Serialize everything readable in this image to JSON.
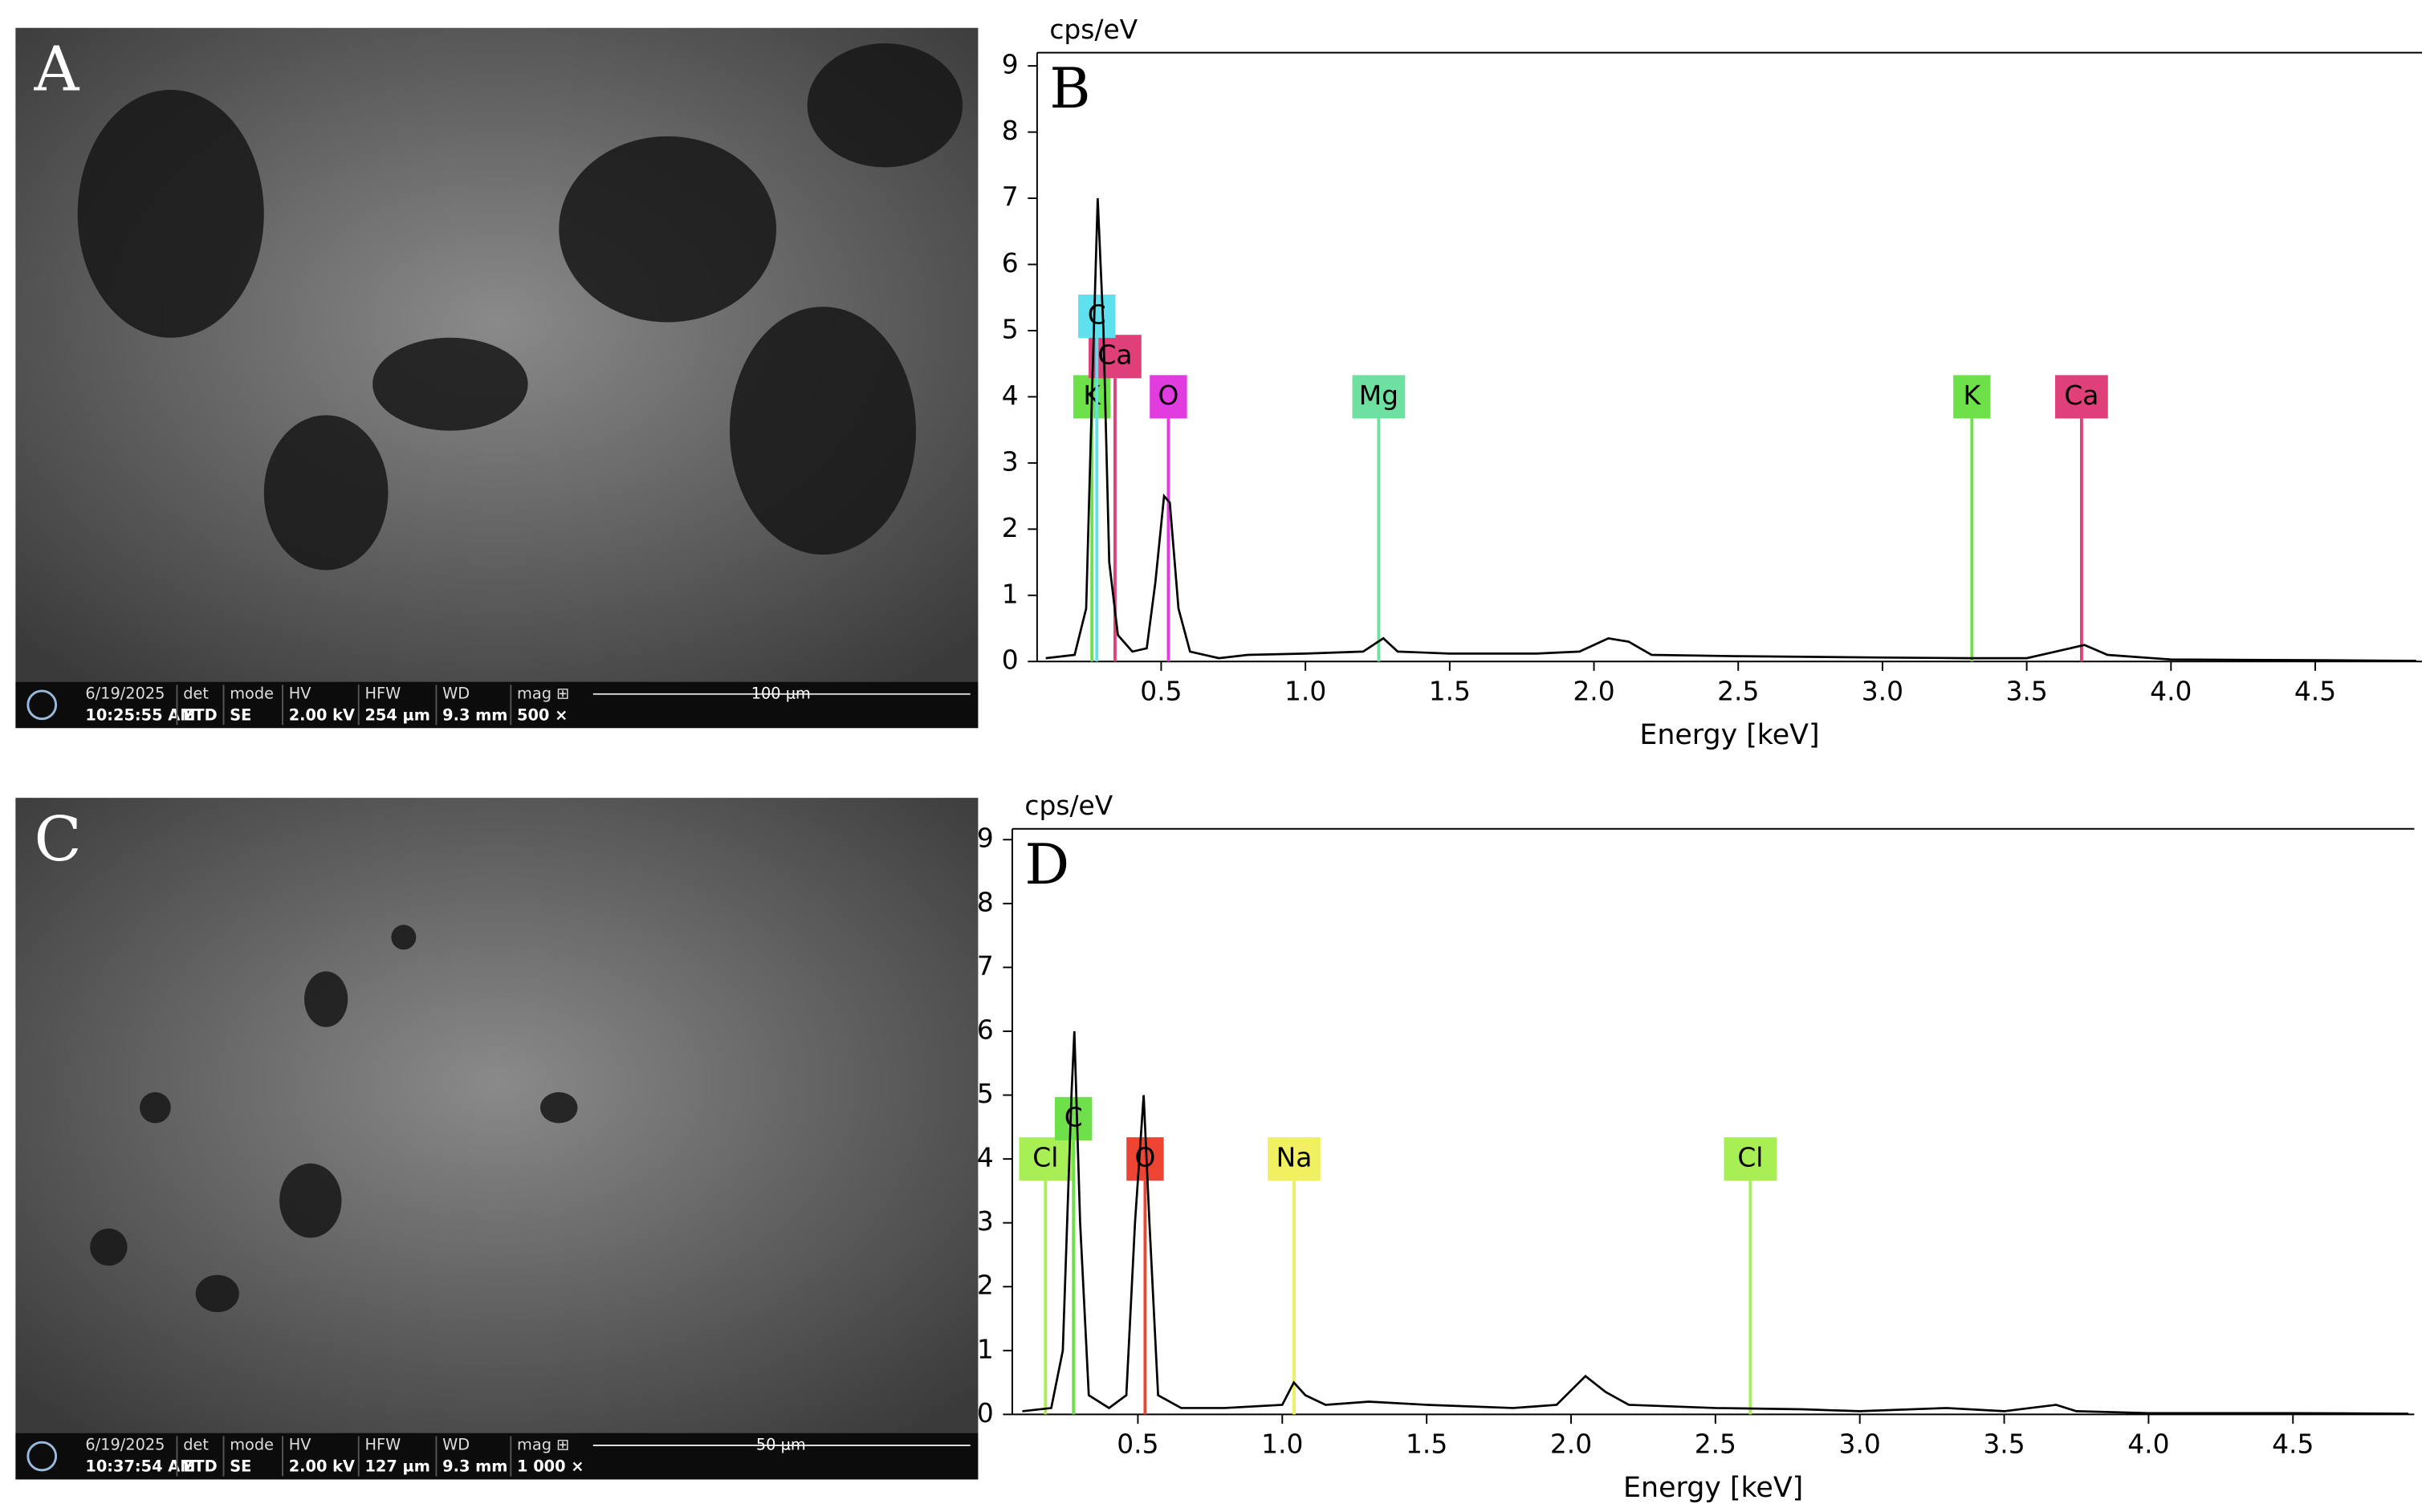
{
  "images": [
    {
      "label": "A",
      "info": [
        {
          "top": "6/19/2025",
          "bottom": "10:25:55 AM"
        },
        {
          "top": "det",
          "bottom": "ETD"
        },
        {
          "top": "mode",
          "bottom": "SE"
        },
        {
          "top": "HV",
          "bottom": "2.00 kV"
        },
        {
          "top": "HFW",
          "bottom": "254 µm"
        },
        {
          "top": "WD",
          "bottom": "9.3 mm"
        },
        {
          "top": "mag ⊞",
          "bottom": "500 ×"
        }
      ],
      "scale": "100 µm"
    },
    {
      "label": "C",
      "info": [
        {
          "top": "6/19/2025",
          "bottom": "10:37:54 AM"
        },
        {
          "top": "det",
          "bottom": "ETD"
        },
        {
          "top": "mode",
          "bottom": "SE"
        },
        {
          "top": "HV",
          "bottom": "2.00 kV"
        },
        {
          "top": "HFW",
          "bottom": "127 µm"
        },
        {
          "top": "WD",
          "bottom": "9.3 mm"
        },
        {
          "top": "mag ⊞",
          "bottom": "1 000 ×"
        }
      ],
      "scale": "50 µm"
    }
  ],
  "chart_data": [
    {
      "type": "line",
      "panel": "B",
      "y_label": "cps/eV",
      "x_label": "Energy [keV]",
      "color": "#000000",
      "x": [
        0.1,
        0.2,
        0.24,
        0.26,
        0.28,
        0.3,
        0.32,
        0.35,
        0.4,
        0.45,
        0.48,
        0.51,
        0.53,
        0.56,
        0.6,
        0.7,
        0.8,
        1.0,
        1.2,
        1.27,
        1.32,
        1.5,
        1.8,
        1.95,
        2.05,
        2.12,
        2.2,
        2.5,
        3.0,
        3.3,
        3.5,
        3.65,
        3.7,
        3.78,
        4.0,
        4.5,
        4.85
      ],
      "y": [
        0.05,
        0.1,
        0.8,
        4,
        7.0,
        5,
        1.5,
        0.4,
        0.15,
        0.2,
        1.2,
        2.5,
        2.4,
        0.8,
        0.15,
        0.05,
        0.1,
        0.12,
        0.15,
        0.35,
        0.15,
        0.12,
        0.12,
        0.15,
        0.35,
        0.3,
        0.1,
        0.08,
        0.06,
        0.05,
        0.05,
        0.2,
        0.25,
        0.1,
        0.03,
        0.02,
        0.01
      ],
      "xlim": [
        0.07,
        4.87
      ],
      "ylim": [
        0,
        9.2
      ],
      "xticks": [
        0.5,
        {
          "value": 1,
          "label": "1.0"
        },
        1.5,
        {
          "value": 2,
          "label": "2.0"
        },
        2.5,
        {
          "value": 3,
          "label": "3.0"
        },
        3.5,
        {
          "value": 4,
          "label": "4.0"
        },
        4.5
      ],
      "yticks": [
        0,
        1,
        2,
        3,
        4,
        5,
        6,
        7,
        8,
        9
      ],
      "markers": [
        {
          "element": "K",
          "energy": 0.26,
          "color": "#6ee04a"
        },
        {
          "element": "Ca",
          "energy": 0.34,
          "color": "#e0407a"
        },
        {
          "element": "C",
          "energy": 0.277,
          "color": "#5ee0ee"
        },
        {
          "element": "O",
          "energy": 0.525,
          "color": "#e03ce0"
        },
        {
          "element": "Mg",
          "energy": 1.254,
          "color": "#6ee0a0"
        },
        {
          "element": "K",
          "energy": 3.31,
          "color": "#6ee04a"
        },
        {
          "element": "Ca",
          "energy": 3.69,
          "color": "#e0407a"
        }
      ]
    },
    {
      "type": "line",
      "panel": "D",
      "y_label": "cps/eV",
      "x_label": "Energy [keV]",
      "color": "#000000",
      "x": [
        0.1,
        0.2,
        0.24,
        0.27,
        0.28,
        0.3,
        0.33,
        0.4,
        0.46,
        0.49,
        0.52,
        0.54,
        0.57,
        0.65,
        0.8,
        1.0,
        1.04,
        1.08,
        1.15,
        1.3,
        1.5,
        1.8,
        1.95,
        2.05,
        2.12,
        2.2,
        2.5,
        2.8,
        3.0,
        3.3,
        3.5,
        3.68,
        3.75,
        4.0,
        4.5,
        4.9
      ],
      "y": [
        0.05,
        0.1,
        1,
        5,
        6,
        3,
        0.3,
        0.1,
        0.3,
        3,
        5.0,
        3,
        0.3,
        0.1,
        0.1,
        0.15,
        0.5,
        0.3,
        0.15,
        0.2,
        0.15,
        0.1,
        0.15,
        0.6,
        0.35,
        0.15,
        0.1,
        0.08,
        0.05,
        0.1,
        0.05,
        0.15,
        0.05,
        0.02,
        0.02,
        0.01
      ],
      "xlim": [
        0.065,
        4.92
      ],
      "ylim": [
        0,
        9.17
      ],
      "xticks": [
        0.5,
        {
          "value": 1,
          "label": "1.0"
        },
        1.5,
        {
          "value": 2,
          "label": "2.0"
        },
        2.5,
        {
          "value": 3,
          "label": "3.0"
        },
        3.5,
        {
          "value": 4,
          "label": "4.0"
        },
        4.5
      ],
      "yticks": [
        0,
        1,
        2,
        3,
        4,
        5,
        6,
        7,
        8,
        9
      ],
      "markers": [
        {
          "element": "Cl",
          "energy": 0.18,
          "color": "#a8ee55"
        },
        {
          "element": "C",
          "energy": 0.277,
          "color": "#6ee04a"
        },
        {
          "element": "O",
          "energy": 0.525,
          "color": "#ee4433"
        },
        {
          "element": "Na",
          "energy": 1.041,
          "color": "#f0f060"
        },
        {
          "element": "Cl",
          "energy": 2.621,
          "color": "#a8ee55"
        }
      ]
    }
  ]
}
